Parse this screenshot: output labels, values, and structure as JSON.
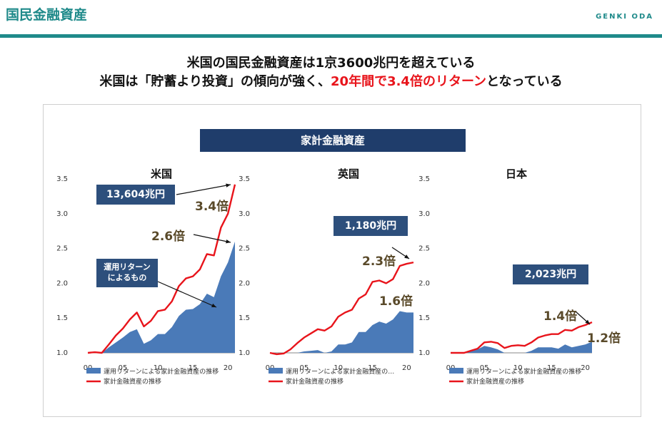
{
  "header": {
    "title": "国民金融資産",
    "brand": "GENKI ODA"
  },
  "headline": {
    "line1": "米国の国民金融資産は1京3600兆円を超えている",
    "line2_pre": "米国は「貯蓄より投資」の傾向が強く、",
    "line2_red": "20年間で3.4倍のリターン",
    "line2_post": "となっている"
  },
  "section_title": "家計金融資産",
  "colors": {
    "area": "#4a7ab8",
    "line": "#e8141b",
    "callout": "#2d4f7c",
    "accent": "#1f8a8a"
  },
  "chart_data": [
    {
      "type": "line",
      "country": "米国",
      "x": [
        2000,
        2001,
        2002,
        2003,
        2004,
        2005,
        2006,
        2007,
        2008,
        2009,
        2010,
        2011,
        2012,
        2013,
        2014,
        2015,
        2016,
        2017,
        2018,
        2019,
        2020,
        2021
      ],
      "x_tick_labels": [
        "00",
        "05",
        "10",
        "15",
        "20"
      ],
      "ylim": [
        1.0,
        3.5
      ],
      "y_ticks": [
        "1.0",
        "1.5",
        "2.0",
        "2.5",
        "3.0",
        "3.5"
      ],
      "series": [
        {
          "name": "運用リターンによる家計金融資産の推移",
          "kind": "area",
          "values": [
            1.0,
            1.0,
            0.98,
            1.08,
            1.15,
            1.22,
            1.3,
            1.34,
            1.13,
            1.18,
            1.27,
            1.27,
            1.37,
            1.53,
            1.62,
            1.63,
            1.7,
            1.85,
            1.8,
            2.1,
            2.3,
            2.6
          ]
        },
        {
          "name": "家計金融資産の推移",
          "kind": "line",
          "values": [
            1.0,
            1.01,
            1.0,
            1.12,
            1.25,
            1.35,
            1.48,
            1.58,
            1.38,
            1.46,
            1.6,
            1.62,
            1.74,
            1.96,
            2.07,
            2.1,
            2.2,
            2.42,
            2.4,
            2.8,
            3.0,
            3.42
          ]
        }
      ],
      "value_callout": "13,604兆円",
      "mult_line": "3.4倍",
      "mult_area": "2.6倍",
      "area_label_1": "運用リターン",
      "area_label_2": "によるもの"
    },
    {
      "type": "line",
      "country": "英国",
      "x": [
        2000,
        2001,
        2002,
        2003,
        2004,
        2005,
        2006,
        2007,
        2008,
        2009,
        2010,
        2011,
        2012,
        2013,
        2014,
        2015,
        2016,
        2017,
        2018,
        2019,
        2020,
        2021
      ],
      "x_tick_labels": [
        "00",
        "05",
        "10",
        "15",
        "20"
      ],
      "ylim": [
        1.0,
        3.5
      ],
      "y_ticks": [
        "1.0",
        "1.5",
        "2.0",
        "2.5",
        "3.0",
        "3.5"
      ],
      "series": [
        {
          "name": "運用リターンによる家計金融資産の…",
          "kind": "area",
          "values": [
            1.0,
            0.98,
            0.97,
            0.98,
            1.0,
            1.02,
            1.03,
            1.04,
            0.98,
            1.02,
            1.12,
            1.12,
            1.15,
            1.3,
            1.3,
            1.4,
            1.45,
            1.42,
            1.48,
            1.6,
            1.58,
            1.58
          ]
        },
        {
          "name": "家計金融資産の推移",
          "kind": "line",
          "values": [
            1.0,
            0.98,
            0.99,
            1.05,
            1.14,
            1.22,
            1.28,
            1.34,
            1.32,
            1.38,
            1.52,
            1.58,
            1.62,
            1.78,
            1.84,
            2.02,
            2.04,
            2.0,
            2.06,
            2.25,
            2.28,
            2.3
          ]
        }
      ],
      "value_callout": "1,180兆円",
      "mult_line": "2.3倍",
      "mult_area": "1.6倍"
    },
    {
      "type": "line",
      "country": "日本",
      "x": [
        2000,
        2001,
        2002,
        2003,
        2004,
        2005,
        2006,
        2007,
        2008,
        2009,
        2010,
        2011,
        2012,
        2013,
        2014,
        2015,
        2016,
        2017,
        2018,
        2019,
        2020,
        2021
      ],
      "x_tick_labels": [
        "00",
        "05",
        "10",
        "15",
        "20"
      ],
      "ylim": [
        1.0,
        3.5
      ],
      "y_ticks": [
        "1.0",
        "1.5",
        "2.0",
        "2.5",
        "3.0",
        "3.5"
      ],
      "series": [
        {
          "name": "運用リターンによる家計金融資産の推移",
          "kind": "area",
          "values": [
            1.0,
            1.0,
            0.99,
            1.02,
            1.05,
            1.1,
            1.08,
            1.05,
            0.98,
            1.0,
            1.0,
            0.99,
            1.03,
            1.08,
            1.08,
            1.08,
            1.06,
            1.12,
            1.08,
            1.1,
            1.12,
            1.16
          ]
        },
        {
          "name": "家計金融資産の推移",
          "kind": "line",
          "values": [
            1.0,
            1.0,
            1.0,
            1.03,
            1.06,
            1.15,
            1.16,
            1.14,
            1.07,
            1.1,
            1.11,
            1.1,
            1.15,
            1.22,
            1.25,
            1.27,
            1.27,
            1.33,
            1.32,
            1.37,
            1.4,
            1.44
          ]
        }
      ],
      "value_callout": "2,023兆円",
      "mult_line": "1.4倍",
      "mult_area": "1.2倍"
    }
  ]
}
